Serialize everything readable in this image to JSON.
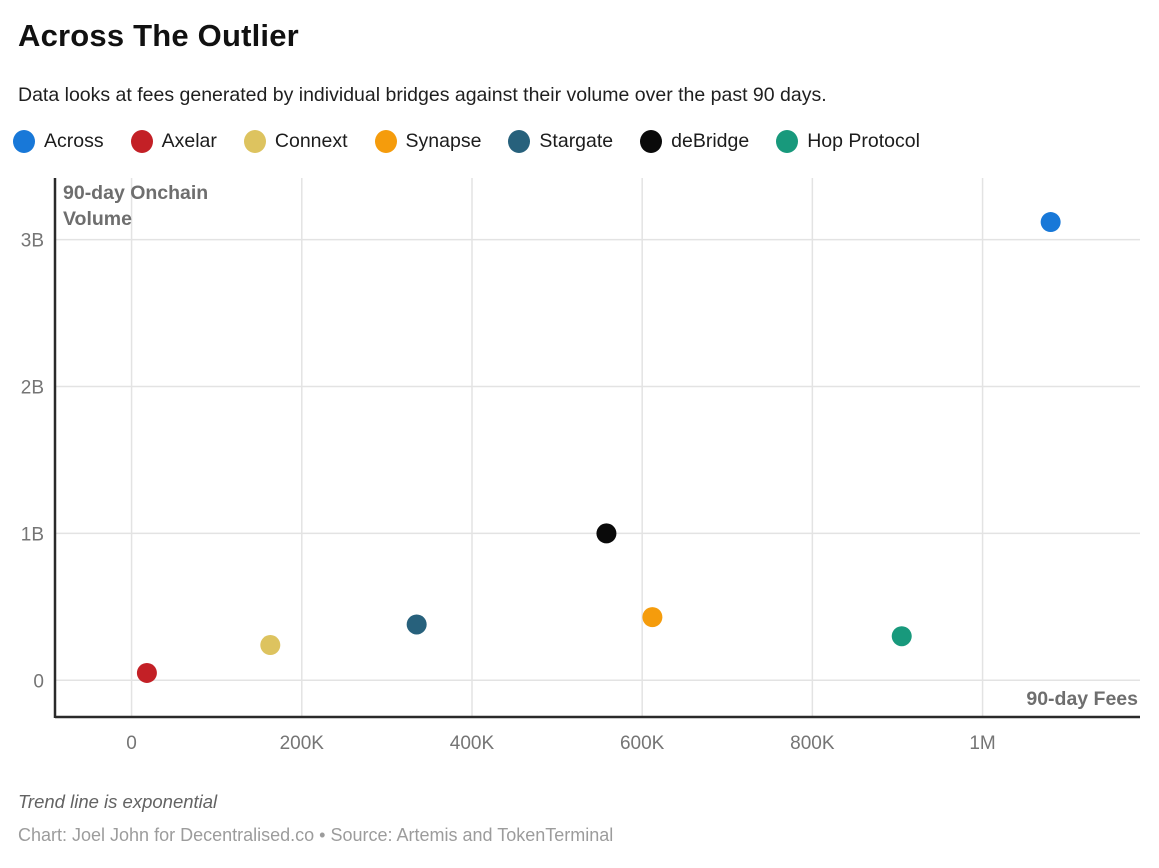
{
  "header": {
    "title": "Across The Outlier",
    "subtitle": "Data looks at fees generated by individual bridges against their volume over the past 90 days."
  },
  "legend": {
    "items": [
      {
        "label": "Across",
        "color": "#1878d8"
      },
      {
        "label": "Axelar",
        "color": "#c32026"
      },
      {
        "label": "Connext",
        "color": "#ddc35f"
      },
      {
        "label": "Synapse",
        "color": "#f59c0c"
      },
      {
        "label": "Stargate",
        "color": "#27617c"
      },
      {
        "label": "deBridge",
        "color": "#0a0a0a"
      },
      {
        "label": "Hop Protocol",
        "color": "#18997c"
      }
    ]
  },
  "chart_data": {
    "type": "scatter",
    "title": "Across The Outlier",
    "xlabel": "90-day Fees",
    "ylabel": "90-day Onchain Volume",
    "ylabel_lines": [
      "90-day Onchain",
      "Volume"
    ],
    "grid": true,
    "xlim": [
      -90000,
      1185000
    ],
    "ylim": [
      -250000000,
      3420000000
    ],
    "x_ticks": [
      {
        "value": 0,
        "label": "0"
      },
      {
        "value": 200000,
        "label": "200K"
      },
      {
        "value": 400000,
        "label": "400K"
      },
      {
        "value": 600000,
        "label": "600K"
      },
      {
        "value": 800000,
        "label": "800K"
      },
      {
        "value": 1000000,
        "label": "1M"
      }
    ],
    "y_ticks": [
      {
        "value": 0,
        "label": "0"
      },
      {
        "value": 1000000000,
        "label": "1B"
      },
      {
        "value": 2000000000,
        "label": "2B"
      },
      {
        "value": 3000000000,
        "label": "3B"
      }
    ],
    "series": [
      {
        "name": "Across",
        "color": "#1878d8",
        "x": 1080000,
        "y": 3120000000
      },
      {
        "name": "Axelar",
        "color": "#c32026",
        "x": 18000,
        "y": 50000000
      },
      {
        "name": "Connext",
        "color": "#ddc35f",
        "x": 163000,
        "y": 240000000
      },
      {
        "name": "Synapse",
        "color": "#f59c0c",
        "x": 612000,
        "y": 430000000
      },
      {
        "name": "Stargate",
        "color": "#27617c",
        "x": 335000,
        "y": 380000000
      },
      {
        "name": "deBridge",
        "color": "#0a0a0a",
        "x": 558000,
        "y": 1000000000
      },
      {
        "name": "Hop Protocol",
        "color": "#18997c",
        "x": 905000,
        "y": 300000000
      }
    ],
    "annotation": "Trend line is exponential",
    "legend_position": "top"
  },
  "footer": {
    "note": "Trend line is exponential",
    "credit": "Chart: Joel John for Decentralised.co • Source: Artemis and TokenTerminal"
  },
  "style": {
    "gridline_color": "#e3e3e3",
    "axis_color": "#2a2a2a",
    "tick_color": "#757575",
    "axis_title_color": "#6e6e6e",
    "point_radius": 10
  }
}
